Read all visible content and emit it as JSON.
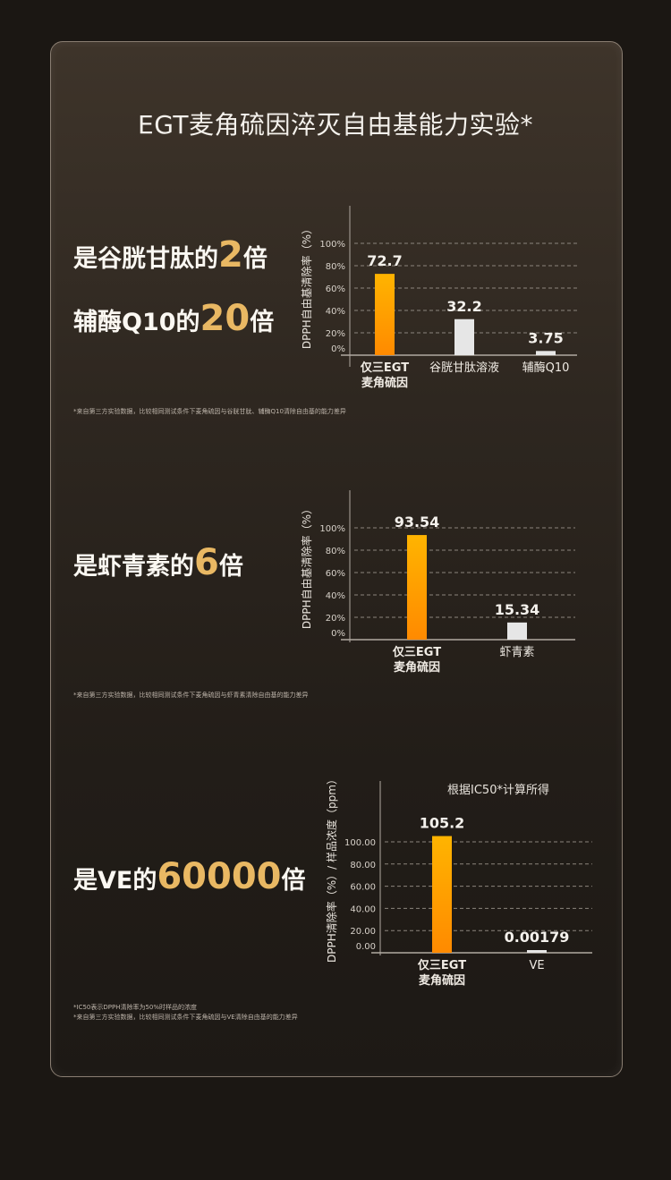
{
  "title": "EGT麦角硫因淬灭自由基能力实验*",
  "sections": [
    {
      "headlines": [
        {
          "prefix": "是谷胱甘肽的",
          "num": "2",
          "suffix": "倍"
        },
        {
          "prefix": "辅酶Q10的",
          "num": "20",
          "suffix": "倍"
        }
      ],
      "notes": [
        "*来自第三方实验数据，比较相同测试条件下麦角硫因与谷胱甘肽、辅酶Q10清除自由基的能力差异"
      ]
    },
    {
      "headlines": [
        {
          "prefix": "是虾青素的",
          "num": "6",
          "suffix": "倍"
        }
      ],
      "notes": [
        "*来自第三方实验数据，比较相同测试条件下麦角硫因与虾青素清除自由基的能力差异"
      ]
    },
    {
      "headlines": [
        {
          "prefix": "是VE的",
          "num": "60000",
          "suffix": "倍"
        }
      ],
      "notes": [
        "*IC50表示DPPH清除率为50%时样品的浓度",
        "*来自第三方实验数据，比较相同测试条件下麦角硫因与VE清除自由基的能力差异"
      ]
    }
  ],
  "colors": {
    "accent_gold": "#e9b863",
    "bar_highlight_top": "#ffb400",
    "bar_highlight_bottom": "#ff8a00",
    "bar_other": "#e6e6e6"
  },
  "chart_data": [
    {
      "type": "bar",
      "title": "",
      "ylabel": "DPPH自由基清除率（%）",
      "ylim": [
        0,
        100
      ],
      "yticks": [
        "0%",
        "20%",
        "40%",
        "60%",
        "80%",
        "100%"
      ],
      "ytick_values": [
        0,
        20,
        40,
        60,
        80,
        100
      ],
      "grid": true,
      "categories": [
        [
          "仅三EGT",
          "麦角硫因"
        ],
        [
          "谷胱甘肽溶液"
        ],
        [
          "辅酶Q10"
        ]
      ],
      "values": [
        72.7,
        32.2,
        3.75
      ],
      "value_labels": [
        "72.7",
        "32.2",
        "3.75"
      ],
      "highlight": [
        true,
        false,
        false
      ]
    },
    {
      "type": "bar",
      "title": "",
      "ylabel": "DPPH自由基清除率（%）",
      "ylim": [
        0,
        100
      ],
      "yticks": [
        "0%",
        "20%",
        "40%",
        "60%",
        "80%",
        "100%"
      ],
      "ytick_values": [
        0,
        20,
        40,
        60,
        80,
        100
      ],
      "grid": true,
      "categories": [
        [
          "仅三EGT",
          "麦角硫因"
        ],
        [
          "虾青素"
        ]
      ],
      "values": [
        93.54,
        15.34
      ],
      "value_labels": [
        "93.54",
        "15.34"
      ],
      "highlight": [
        true,
        false
      ]
    },
    {
      "type": "bar",
      "title": "根据IC50*计算所得",
      "ylabel": "DPPH清除率（%）/ 样品浓度（ppm）",
      "ylim": [
        0,
        100
      ],
      "yticks": [
        "0.00",
        "20.00",
        "40.00",
        "60.00",
        "80.00",
        "100.00"
      ],
      "ytick_values": [
        0,
        20,
        40,
        60,
        80,
        100
      ],
      "grid": true,
      "categories": [
        [
          "仅三EGT",
          "麦角硫因"
        ],
        [
          "VE"
        ]
      ],
      "values": [
        105.2,
        0.00179
      ],
      "value_labels": [
        "105.2",
        "0.00179"
      ],
      "highlight": [
        true,
        false
      ]
    }
  ]
}
